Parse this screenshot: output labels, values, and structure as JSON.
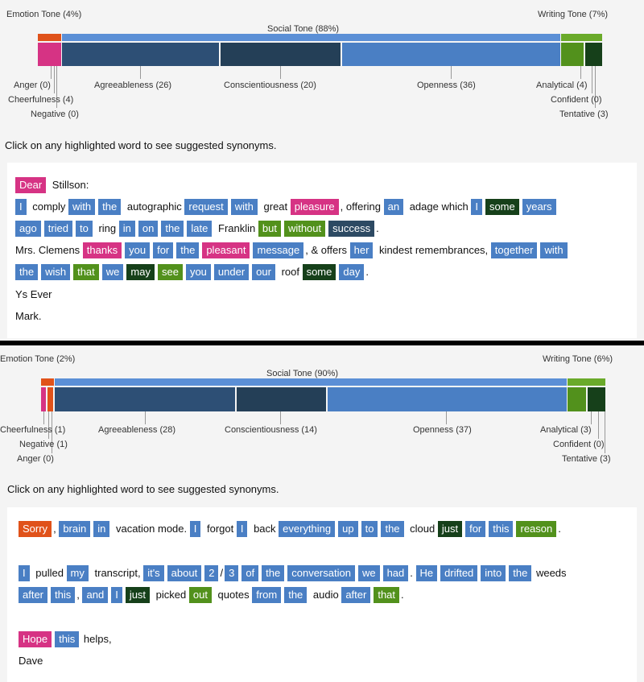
{
  "top": {
    "emotion_tone": "Emotion Tone (4%)",
    "social_tone": "Social Tone (88%)",
    "writing_tone": "Writing Tone (7%)",
    "anger": "Anger (0)",
    "cheerfulness": "Cheerfulness (4)",
    "negative": "Negative (0)",
    "agreeableness": "Agreeableness (26)",
    "conscientiousness": "Conscientiousness (20)",
    "openness": "Openness (36)",
    "analytical": "Analytical (4)",
    "confident": "Confident (0)",
    "tentative": "Tentative (3)",
    "hint": "Click on any highlighted word to see suggested synonyms.",
    "l1": {
      "dear": "Dear",
      "t1": " Stillson:"
    },
    "l2": {
      "a": "I",
      "b": " comply ",
      "c": "with",
      "d": "the",
      "e": " autographic ",
      "f": "request",
      "g": "with",
      "h": " great ",
      "i": "pleasure",
      "j": ", offering ",
      "k": "an",
      "l": " adage which ",
      "m": "I",
      "n": "some",
      "o": "years"
    },
    "l3": {
      "a": "ago",
      "b": "tried",
      "c": "to",
      "d": " ring ",
      "e": "in",
      "f": "on",
      "g": "the",
      "h": "late",
      "i": " Franklin ",
      "j": "but",
      "k": "without",
      "l": "success",
      "m": "."
    },
    "l4": {
      "a": "Mrs. Clemens ",
      "b": "thanks",
      "c": "you",
      "d": "for",
      "e": "the",
      "f": "pleasant",
      "g": "message",
      "h": ", & offers ",
      "i": "her",
      "j": " kindest remembrances, ",
      "k": "together",
      "l": "with"
    },
    "l5": {
      "a": "the",
      "b": "wish",
      "c": "that",
      "d": "we",
      "e": "may",
      "f": "see",
      "g": "you",
      "h": "under",
      "i": "our",
      "j": " roof ",
      "k": "some",
      "l": "day",
      "m": "."
    },
    "l6": "Ys Ever",
    "l7": "Mark."
  },
  "bottom": {
    "emotion_tone": "Emotion Tone (2%)",
    "social_tone": "Social Tone (90%)",
    "writing_tone": "Writing Tone (6%)",
    "cheerfulness": "Cheerfulness (1)",
    "negative": "Negative (1)",
    "anger": "Anger (0)",
    "agreeableness": "Agreeableness (28)",
    "conscientiousness": "Conscientiousness (14)",
    "openness": "Openness (37)",
    "analytical": "Analytical (3)",
    "confident": "Confident (0)",
    "tentative": "Tentative (3)",
    "hint": "Click on any highlighted word to see suggested synonyms.",
    "l1": {
      "a": "Sorry",
      "b": ",",
      "c": "brain",
      "d": "in",
      "e": " vacation mode. ",
      "f": "I",
      "g": " forgot ",
      "h": "I",
      "i": " back ",
      "j": "everything",
      "k": "up",
      "l": "to",
      "m": "the",
      "n": " cloud ",
      "o": "just",
      "p": "for",
      "q": "this",
      "r": "reason",
      "s": "."
    },
    "l2": {
      "a": "I",
      "b": " pulled ",
      "c": "my",
      "d": " transcript, ",
      "e": "it's",
      "f": "about",
      "g": "2",
      "h": "/",
      "i": "3",
      "j": "of",
      "k": "the",
      "l": "conversation",
      "m": "we",
      "n": "had",
      "o": ".",
      "p": "He",
      "q": "drifted",
      "r": "into",
      "s": "the",
      "t": " weeds"
    },
    "l3": {
      "a": "after",
      "b": "this",
      "c": ", ",
      "d": "and",
      "e": "I",
      "f": "just",
      "g": " picked ",
      "h": "out",
      "i": " quotes ",
      "j": "from",
      "k": "the",
      "l": " audio ",
      "m": "after",
      "n": "that",
      "o": "."
    },
    "l4": {
      "a": "Hope",
      "b": "this",
      "c": " helps,"
    },
    "l5": "Dave"
  }
}
